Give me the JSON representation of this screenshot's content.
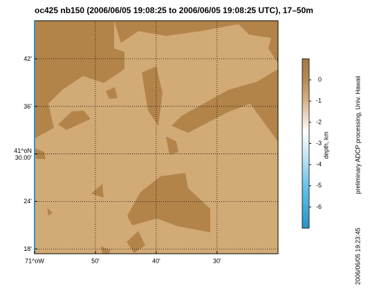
{
  "chart_data": {
    "type": "map",
    "title": "oc425 nb150 (2006/06/05 19:08:25 to 2006/06/05 19:08:25 UTC), 17–50m",
    "xlim": [
      -71.0,
      -70.333
    ],
    "ylim": [
      41.29,
      41.78
    ],
    "xticks": [
      {
        "value": -71.0,
        "label": "71^oW"
      },
      {
        "value": -70.8333,
        "label": "50'"
      },
      {
        "value": -70.6667,
        "label": "40'"
      },
      {
        "value": -70.5,
        "label": "30'"
      }
    ],
    "yticks": [
      {
        "value": 41.7,
        "label": "42'"
      },
      {
        "value": 41.6,
        "label": "36'"
      },
      {
        "value": 41.5,
        "label": "41^oN\n30.00'"
      },
      {
        "value": 41.4,
        "label": "24'"
      },
      {
        "value": 41.3,
        "label": "18'"
      }
    ],
    "grid": true,
    "colorbar": {
      "label": "depth, km",
      "clim": [
        -7,
        1
      ],
      "ticks": [
        0,
        -1,
        -2,
        -3,
        -4,
        -5,
        -6
      ]
    },
    "credit": "preliminary ADCP processing,  Univ. Hawaii",
    "timestamp": "2006/06/05 19:23:45"
  }
}
